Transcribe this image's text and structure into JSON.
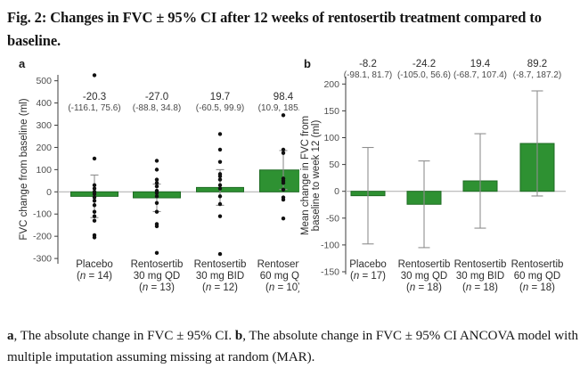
{
  "title": "Fig. 2: Changes in FVC ± 95% CI after 12 weeks of rentosertib treatment compared to baseline.",
  "caption": {
    "a_label": "a",
    "a_text": ", The absolute change in FVC ± 95% CI. ",
    "b_label": "b",
    "b_text": ", The absolute change in FVC ± 95% CI ANCOVA model with multiple imputation assuming missing at random (MAR)."
  },
  "style": {
    "bar_fill": "#2e9132",
    "bar_stroke": "#1e6b23",
    "whisker": "#8f8f8f",
    "point": "#111111",
    "zero_line": "#b5b5b5",
    "axis": "#3d3d3d"
  },
  "chart_data": [
    {
      "panel": "a",
      "type": "bar",
      "title": "",
      "xlabel": "",
      "ylabel": [
        "FVC change from baseline (ml)"
      ],
      "ylim": [
        -320,
        545
      ],
      "yticks": [
        500,
        400,
        300,
        200,
        100,
        0,
        -100,
        -200,
        -300
      ],
      "grid": false,
      "legend": "none",
      "error_bars": "95% CI",
      "categories": [
        {
          "lines": [
            "Placebo"
          ],
          "n": "14",
          "mean": -20.3,
          "ci": [
            -116.1,
            75.6
          ],
          "label": "-20.3",
          "ci_label": "(-116.1, 75.6)",
          "points": [
            525,
            150,
            30,
            15,
            0,
            -10,
            -25,
            -40,
            -60,
            -90,
            -110,
            -130,
            -195,
            -205
          ]
        },
        {
          "lines": [
            "Rentosertib",
            "30 mg QD"
          ],
          "n": "13",
          "mean": -27.0,
          "ci": [
            -88.8,
            34.8
          ],
          "label": "-27.0",
          "ci_label": "(-88.8, 34.8)",
          "points": [
            140,
            100,
            55,
            40,
            25,
            5,
            -5,
            -20,
            -50,
            -90,
            -145,
            -155,
            -275
          ]
        },
        {
          "lines": [
            "Rentosertib",
            "30 mg BID"
          ],
          "n": "12",
          "mean": 19.7,
          "ci": [
            -60.5,
            99.9
          ],
          "label": "19.7",
          "ci_label": "(-60.5, 99.9)",
          "points": [
            260,
            190,
            135,
            80,
            70,
            55,
            30,
            15,
            -20,
            -55,
            -110,
            -280
          ]
        },
        {
          "lines": [
            "Rentosertib",
            "60 mg QD"
          ],
          "n": "10",
          "mean": 98.4,
          "ci": [
            10.9,
            185.9
          ],
          "label": "98.4",
          "ci_label": "(10.9, 185.9)",
          "points": [
            345,
            190,
            175,
            60,
            50,
            40,
            10,
            -25,
            -35,
            -120
          ]
        }
      ]
    },
    {
      "panel": "b",
      "type": "bar",
      "title": "",
      "xlabel": "",
      "ylabel": [
        "Mean change in FVC from",
        "baseline to week 12 (ml)"
      ],
      "ylim": [
        -165,
        215
      ],
      "yticks": [
        200,
        150,
        100,
        50,
        0,
        -50,
        -100,
        -150
      ],
      "grid": false,
      "legend": "none",
      "error_bars": "95% CI",
      "categories": [
        {
          "lines": [
            "Placebo"
          ],
          "n": "17",
          "mean": -8.2,
          "ci": [
            -98.1,
            81.7
          ],
          "label": "-8.2",
          "ci_label": "(-98.1, 81.7)"
        },
        {
          "lines": [
            "Rentosertib",
            "30 mg QD"
          ],
          "n": "18",
          "mean": -24.2,
          "ci": [
            -105.0,
            56.6
          ],
          "label": "-24.2",
          "ci_label": "(-105.0, 56.6)"
        },
        {
          "lines": [
            "Rentosertib",
            "30 mg BID"
          ],
          "n": "18",
          "mean": 19.4,
          "ci": [
            -68.7,
            107.4
          ],
          "label": "19.4",
          "ci_label": "(-68.7, 107.4)"
        },
        {
          "lines": [
            "Rentosertib",
            "60 mg QD"
          ],
          "n": "18",
          "mean": 89.2,
          "ci": [
            -8.7,
            187.2
          ],
          "label": "89.2",
          "ci_label": "(-8.7, 187.2)"
        }
      ]
    }
  ]
}
